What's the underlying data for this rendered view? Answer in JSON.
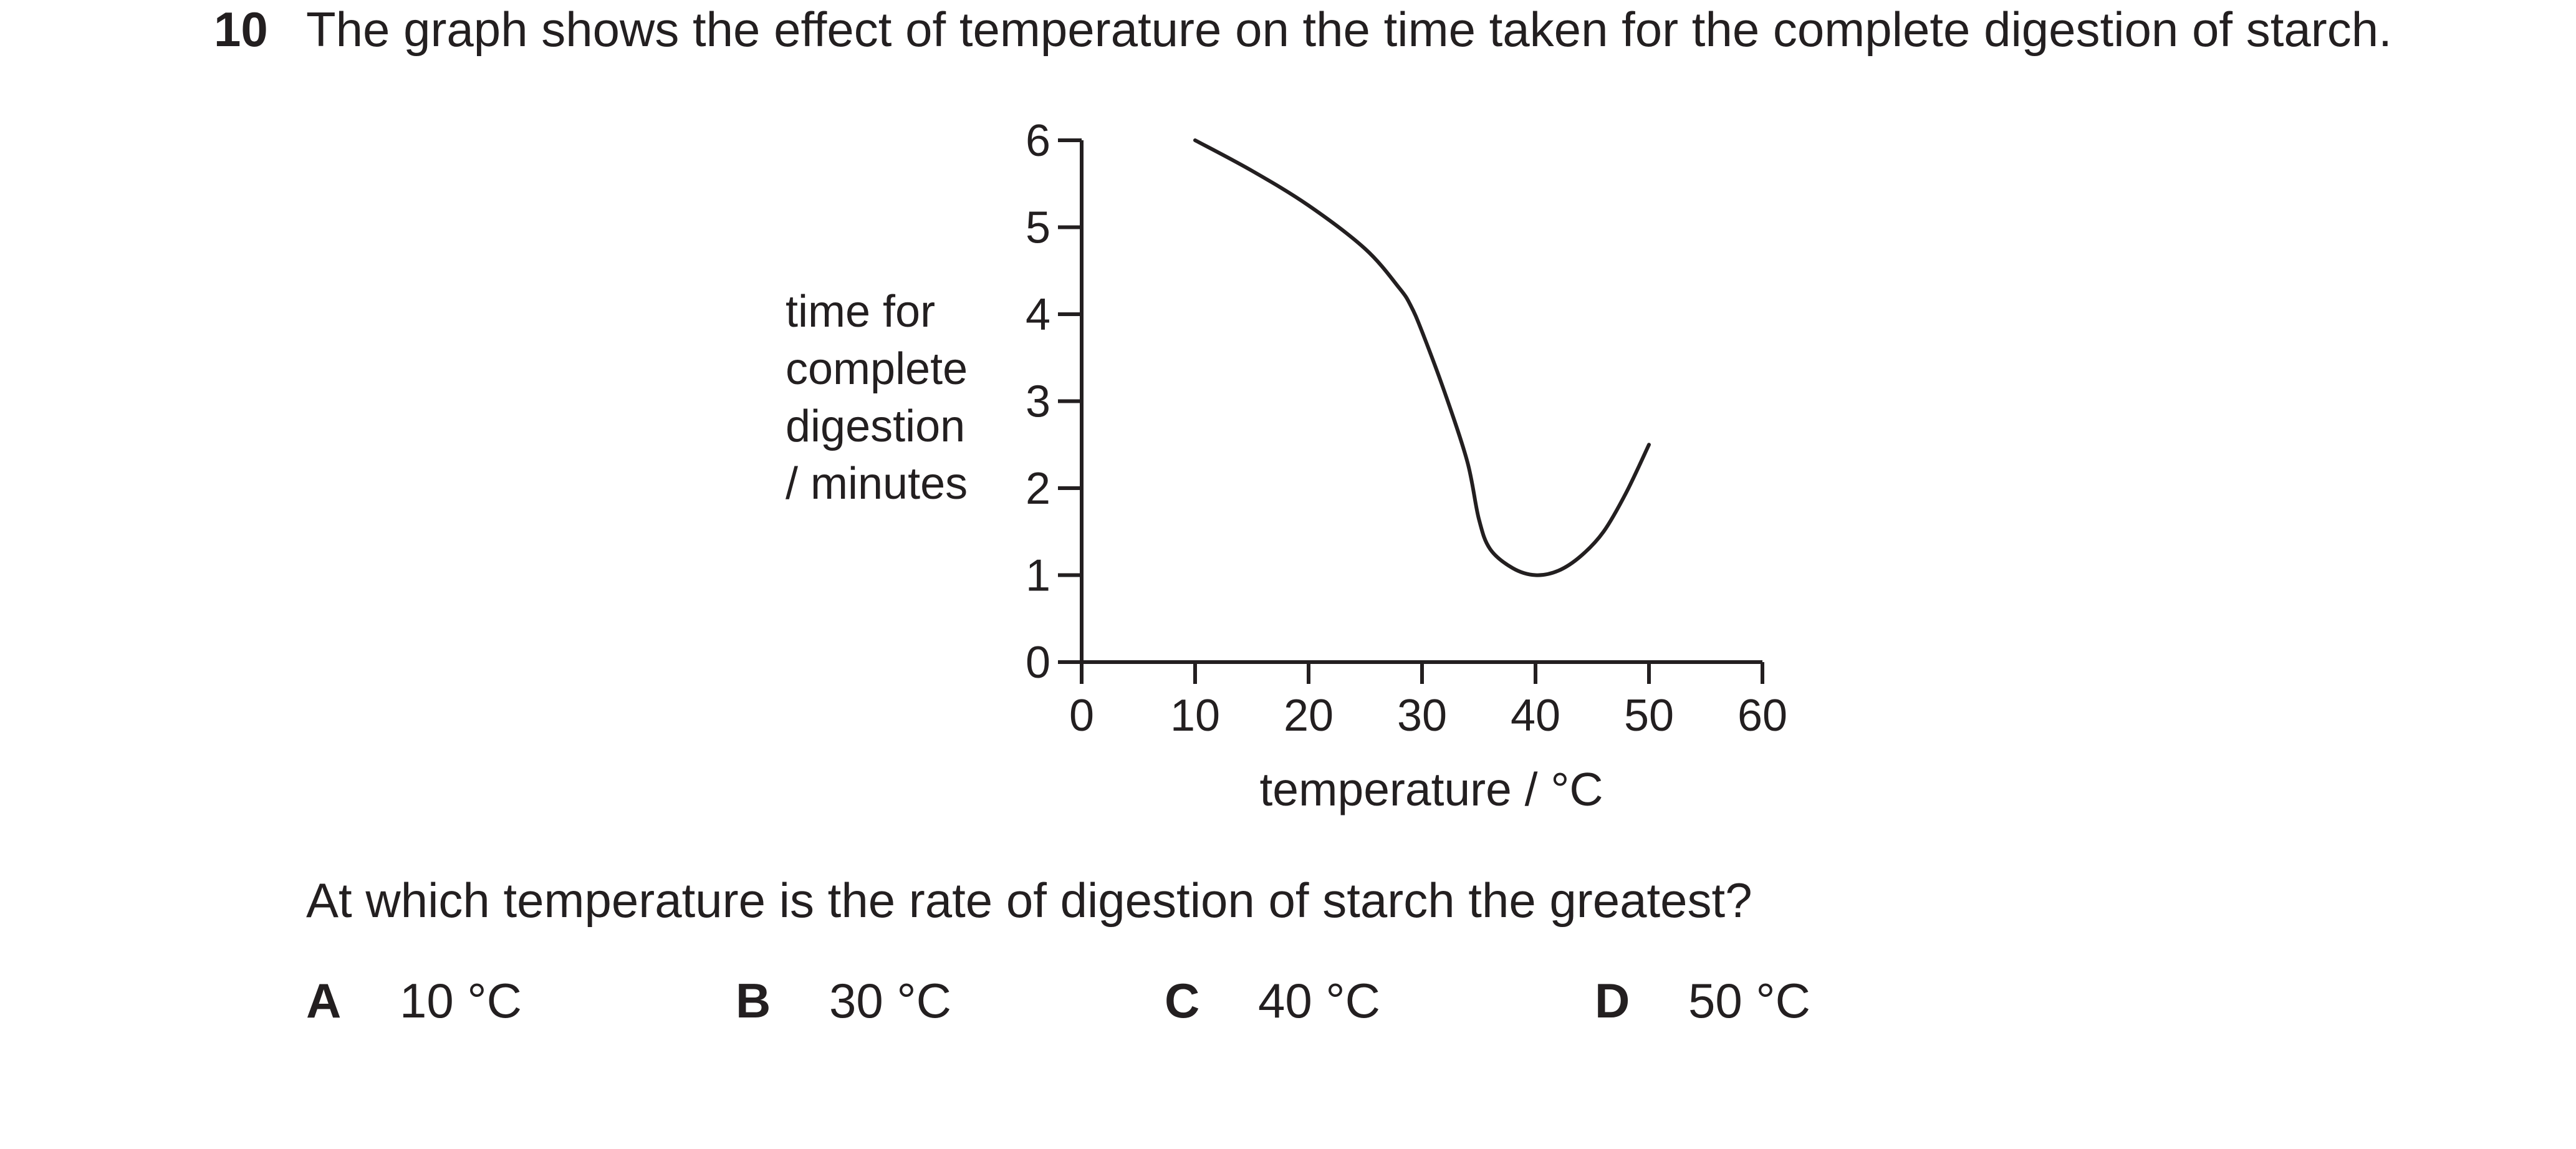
{
  "question": {
    "number": "10",
    "stem": "The graph shows the effect of temperature on the time taken for the complete digestion of starch.",
    "prompt": "At which temperature is the rate of digestion of starch the greatest?",
    "options": [
      {
        "letter": "A",
        "text": "10 °C"
      },
      {
        "letter": "B",
        "text": "30 °C"
      },
      {
        "letter": "C",
        "text": "40 °C"
      },
      {
        "letter": "D",
        "text": "50 °C"
      }
    ]
  },
  "chart_data": {
    "type": "line",
    "title": "",
    "xlabel": "temperature / °C",
    "ylabel_lines": [
      "time for",
      "complete",
      "digestion",
      "/ minutes"
    ],
    "xlim": [
      0,
      60
    ],
    "ylim": [
      0,
      6
    ],
    "x_ticks": [
      0,
      10,
      20,
      30,
      40,
      50,
      60
    ],
    "y_ticks": [
      0,
      1,
      2,
      3,
      4,
      5,
      6
    ],
    "grid": false,
    "series": [
      {
        "x": [
          10,
          15,
          20,
          25,
          28,
          29,
          30,
          32,
          34,
          35,
          36,
          38,
          40,
          42,
          44,
          46,
          48,
          50
        ],
        "y": [
          6.0,
          5.65,
          5.25,
          4.75,
          4.3,
          4.1,
          3.8,
          3.1,
          2.3,
          1.65,
          1.3,
          1.08,
          1.0,
          1.05,
          1.22,
          1.5,
          1.95,
          2.5
        ]
      }
    ],
    "colors": {
      "ink": "#231f20"
    }
  }
}
